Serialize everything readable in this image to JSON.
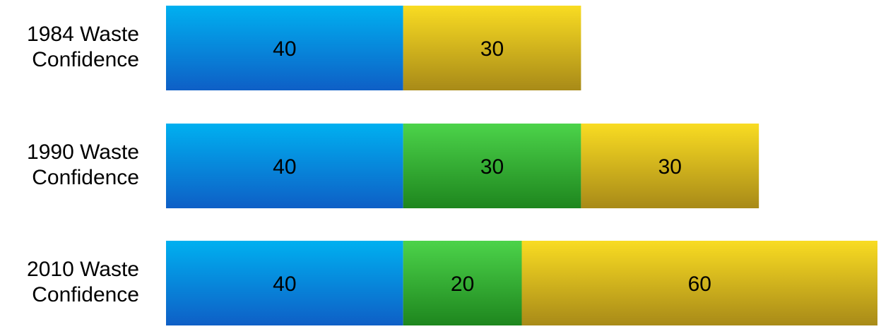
{
  "chart_data": {
    "type": "bar",
    "orientation": "horizontal",
    "stacked": true,
    "categories": [
      [
        "1984 Waste",
        "Confidence"
      ],
      [
        "1990 Waste",
        "Confidence"
      ],
      [
        "2010 Waste",
        "Confidence"
      ]
    ],
    "series": [
      {
        "values": [
          40,
          40,
          40
        ],
        "color_top": "#00b0f0",
        "color_bottom": "#0e5fc6"
      },
      {
        "values": [
          0,
          30,
          20
        ],
        "color_top": "#4cd34a",
        "color_bottom": "#1e861e"
      },
      {
        "values": [
          30,
          30,
          60
        ],
        "color_top": "#f9dc22",
        "color_bottom": "#a88a18"
      }
    ],
    "xlim": [
      0,
      120
    ],
    "grid": false,
    "legend": "none",
    "data_labels": true
  }
}
